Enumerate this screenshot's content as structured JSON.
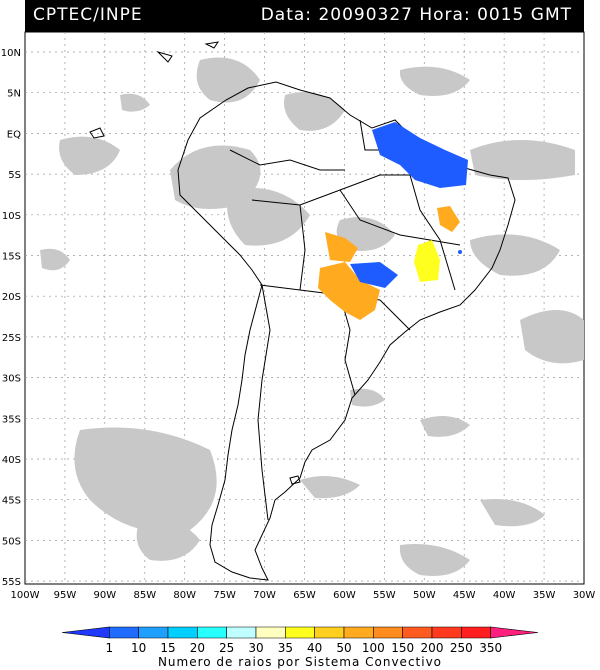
{
  "header": {
    "source": "CPTEC/INPE",
    "date_text": "Data: 20090327",
    "time_text": "Hora: 0015 GMT"
  },
  "lat_labels": [
    "10N",
    "5N",
    "EQ",
    "5S",
    "10S",
    "15S",
    "20S",
    "25S",
    "30S",
    "35S",
    "40S",
    "45S",
    "50S",
    "55S"
  ],
  "lon_labels": [
    "100W",
    "95W",
    "90W",
    "85W",
    "80W",
    "75W",
    "70W",
    "65W",
    "60W",
    "55W",
    "50W",
    "45W",
    "40W",
    "35W",
    "30W"
  ],
  "colorbar": {
    "labels": [
      "1",
      "10",
      "15",
      "20",
      "25",
      "30",
      "35",
      "40",
      "50",
      "100",
      "150",
      "200",
      "250",
      "350"
    ],
    "colors": [
      "#1f39ff",
      "#1f6cff",
      "#1f9fff",
      "#00cfff",
      "#28ffff",
      "#bfffff",
      "#ffffc0",
      "#ffff1f",
      "#ffcf1f",
      "#ffaa1f",
      "#ff8c1f",
      "#ff5a1f",
      "#ff3a1f",
      "#ff1f1f",
      "#ff1f7f"
    ],
    "title": "Numero de raios por Sistema Convectivo"
  },
  "colors": {
    "cloud": "#c8c8c8",
    "background": "#ffffff",
    "header": "#000000",
    "coast": "#000000"
  }
}
